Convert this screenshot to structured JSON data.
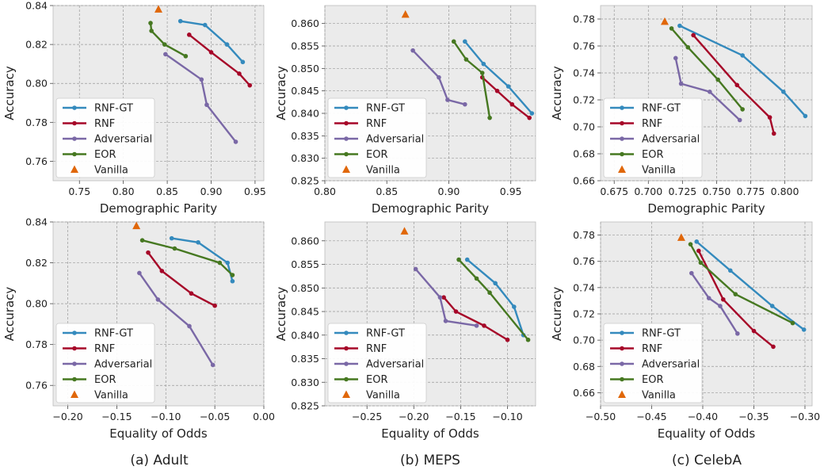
{
  "colors": {
    "RNF-GT": "#348abd",
    "RNF": "#a60628",
    "Adversarial": "#7a68a6",
    "EOR": "#467821",
    "Vanilla": "#e0670a",
    "axes_bg": "#ebebeb",
    "grid": "#999999"
  },
  "legend_order": [
    "RNF-GT",
    "RNF",
    "Adversarial",
    "EOR",
    "Vanilla"
  ],
  "captions": [
    "(a) Adult",
    "(b) MEPS",
    "(c) CelebA"
  ],
  "chart_data": [
    {
      "type": "line",
      "id": "adult-dp",
      "xlabel": "Demographic Parity",
      "ylabel": "Accuracy",
      "xlim": [
        0.72,
        0.96
      ],
      "ylim": [
        0.75,
        0.84
      ],
      "xticks": [
        "0.75",
        "0.80",
        "0.85",
        "0.90",
        "0.95"
      ],
      "yticks": [
        "0.76",
        "0.78",
        "0.80",
        "0.82",
        "0.84"
      ],
      "legend": "lower-left",
      "grid": true,
      "series": [
        {
          "name": "RNF-GT",
          "x": [
            0.865,
            0.893,
            0.918,
            0.936
          ],
          "y": [
            0.832,
            0.83,
            0.82,
            0.811
          ]
        },
        {
          "name": "RNF",
          "x": [
            0.875,
            0.9,
            0.932,
            0.944
          ],
          "y": [
            0.825,
            0.816,
            0.805,
            0.799
          ]
        },
        {
          "name": "Adversarial",
          "x": [
            0.848,
            0.889,
            0.895,
            0.928
          ],
          "y": [
            0.815,
            0.802,
            0.789,
            0.77
          ]
        },
        {
          "name": "EOR",
          "x": [
            0.831,
            0.832,
            0.847,
            0.871
          ],
          "y": [
            0.831,
            0.827,
            0.82,
            0.814
          ]
        },
        {
          "name": "Vanilla",
          "marker": "triangle",
          "x": [
            0.84
          ],
          "y": [
            0.838
          ]
        }
      ]
    },
    {
      "type": "line",
      "id": "meps-dp",
      "xlabel": "Demographic Parity",
      "ylabel": "Accuracy",
      "xlim": [
        0.8,
        0.97
      ],
      "ylim": [
        0.825,
        0.864
      ],
      "xticks": [
        "0.80",
        "0.85",
        "0.90",
        "0.95"
      ],
      "yticks": [
        "0.825",
        "0.830",
        "0.835",
        "0.840",
        "0.845",
        "0.850",
        "0.855",
        "0.860"
      ],
      "legend": "lower-left",
      "grid": true,
      "series": [
        {
          "name": "RNF-GT",
          "x": [
            0.913,
            0.928,
            0.948,
            0.967
          ],
          "y": [
            0.856,
            0.851,
            0.846,
            0.84
          ]
        },
        {
          "name": "RNF",
          "x": [
            0.927,
            0.939,
            0.951,
            0.965
          ],
          "y": [
            0.848,
            0.845,
            0.842,
            0.839
          ]
        },
        {
          "name": "Adversarial",
          "x": [
            0.871,
            0.892,
            0.899,
            0.913
          ],
          "y": [
            0.854,
            0.848,
            0.843,
            0.842
          ]
        },
        {
          "name": "EOR",
          "x": [
            0.904,
            0.914,
            0.927,
            0.933
          ],
          "y": [
            0.856,
            0.852,
            0.849,
            0.839
          ]
        },
        {
          "name": "Vanilla",
          "marker": "triangle",
          "x": [
            0.865
          ],
          "y": [
            0.862
          ]
        }
      ]
    },
    {
      "type": "line",
      "id": "celeba-dp",
      "xlabel": "Demographic Parity",
      "ylabel": "Accuracy",
      "xlim": [
        0.665,
        0.82
      ],
      "ylim": [
        0.66,
        0.79
      ],
      "xticks": [
        "0.675",
        "0.700",
        "0.725",
        "0.750",
        "0.775",
        "0.800"
      ],
      "yticks": [
        "0.66",
        "0.68",
        "0.70",
        "0.72",
        "0.74",
        "0.76",
        "0.78"
      ],
      "legend": "lower-left",
      "grid": true,
      "series": [
        {
          "name": "RNF-GT",
          "x": [
            0.723,
            0.769,
            0.799,
            0.815
          ],
          "y": [
            0.775,
            0.753,
            0.726,
            0.708
          ]
        },
        {
          "name": "RNF",
          "x": [
            0.733,
            0.765,
            0.789,
            0.792
          ],
          "y": [
            0.768,
            0.731,
            0.707,
            0.695
          ]
        },
        {
          "name": "Adversarial",
          "x": [
            0.72,
            0.724,
            0.745,
            0.767
          ],
          "y": [
            0.751,
            0.732,
            0.726,
            0.705
          ]
        },
        {
          "name": "EOR",
          "x": [
            0.717,
            0.729,
            0.751,
            0.769
          ],
          "y": [
            0.773,
            0.759,
            0.735,
            0.713
          ]
        },
        {
          "name": "Vanilla",
          "marker": "triangle",
          "x": [
            0.712
          ],
          "y": [
            0.778
          ]
        }
      ]
    },
    {
      "type": "line",
      "id": "adult-eo",
      "xlabel": "Equality of Odds",
      "ylabel": "Accuracy",
      "xlim": [
        -0.215,
        0.0
      ],
      "ylim": [
        0.75,
        0.84
      ],
      "xticks": [
        "-0.20",
        "-0.15",
        "-0.10",
        "-0.05",
        "0.00"
      ],
      "yticks": [
        "0.76",
        "0.78",
        "0.80",
        "0.82",
        "0.84"
      ],
      "legend": "lower-left",
      "grid": true,
      "series": [
        {
          "name": "RNF-GT",
          "x": [
            -0.094,
            -0.067,
            -0.037,
            -0.032
          ],
          "y": [
            0.832,
            0.83,
            0.82,
            0.811
          ]
        },
        {
          "name": "RNF",
          "x": [
            -0.118,
            -0.104,
            -0.074,
            -0.05
          ],
          "y": [
            0.825,
            0.816,
            0.805,
            0.799
          ]
        },
        {
          "name": "Adversarial",
          "x": [
            -0.127,
            -0.108,
            -0.076,
            -0.052
          ],
          "y": [
            0.815,
            0.802,
            0.789,
            0.77
          ]
        },
        {
          "name": "EOR",
          "x": [
            -0.124,
            -0.091,
            -0.045,
            -0.032
          ],
          "y": [
            0.831,
            0.827,
            0.82,
            0.814
          ]
        },
        {
          "name": "Vanilla",
          "marker": "triangle",
          "x": [
            -0.13
          ],
          "y": [
            0.838
          ]
        }
      ]
    },
    {
      "type": "line",
      "id": "meps-eo",
      "xlabel": "Equality of Odds",
      "ylabel": "Accuracy",
      "xlim": [
        -0.295,
        -0.07
      ],
      "ylim": [
        0.825,
        0.864
      ],
      "xticks": [
        "-0.25",
        "-0.20",
        "-0.15",
        "-0.10"
      ],
      "yticks": [
        "0.825",
        "0.830",
        "0.835",
        "0.840",
        "0.845",
        "0.850",
        "0.855",
        "0.860"
      ],
      "legend": "lower-left",
      "grid": true,
      "series": [
        {
          "name": "RNF-GT",
          "x": [
            -0.143,
            -0.113,
            -0.093,
            -0.083
          ],
          "y": [
            0.856,
            0.851,
            0.846,
            0.84
          ]
        },
        {
          "name": "RNF",
          "x": [
            -0.168,
            -0.155,
            -0.125,
            -0.1
          ],
          "y": [
            0.848,
            0.845,
            0.842,
            0.839
          ]
        },
        {
          "name": "Adversarial",
          "x": [
            -0.198,
            -0.172,
            -0.166,
            -0.133
          ],
          "y": [
            0.854,
            0.848,
            0.843,
            0.842
          ]
        },
        {
          "name": "EOR",
          "x": [
            -0.152,
            -0.133,
            -0.119,
            -0.078
          ],
          "y": [
            0.856,
            0.852,
            0.849,
            0.839
          ]
        },
        {
          "name": "Vanilla",
          "marker": "triangle",
          "x": [
            -0.21
          ],
          "y": [
            0.862
          ]
        }
      ]
    },
    {
      "type": "line",
      "id": "celeba-eo",
      "xlabel": "Equality of Odds",
      "ylabel": "Accuracy",
      "xlim": [
        -0.5,
        -0.293
      ],
      "ylim": [
        0.65,
        0.79
      ],
      "xticks": [
        "-0.50",
        "-0.45",
        "-0.40",
        "-0.35",
        "-0.30"
      ],
      "yticks": [
        "0.66",
        "0.68",
        "0.70",
        "0.72",
        "0.74",
        "0.76",
        "0.78"
      ],
      "legend": "lower-left",
      "grid": true,
      "series": [
        {
          "name": "RNF-GT",
          "x": [
            -0.406,
            -0.373,
            -0.332,
            -0.301
          ],
          "y": [
            0.775,
            0.753,
            0.726,
            0.708
          ]
        },
        {
          "name": "RNF",
          "x": [
            -0.404,
            -0.38,
            -0.35,
            -0.331
          ],
          "y": [
            0.768,
            0.731,
            0.707,
            0.695
          ]
        },
        {
          "name": "Adversarial",
          "x": [
            -0.411,
            -0.394,
            -0.383,
            -0.366
          ],
          "y": [
            0.751,
            0.732,
            0.726,
            0.705
          ]
        },
        {
          "name": "EOR",
          "x": [
            -0.412,
            -0.402,
            -0.368,
            -0.312
          ],
          "y": [
            0.773,
            0.759,
            0.735,
            0.713
          ]
        },
        {
          "name": "Vanilla",
          "marker": "triangle",
          "x": [
            -0.421
          ],
          "y": [
            0.778
          ]
        }
      ]
    }
  ]
}
